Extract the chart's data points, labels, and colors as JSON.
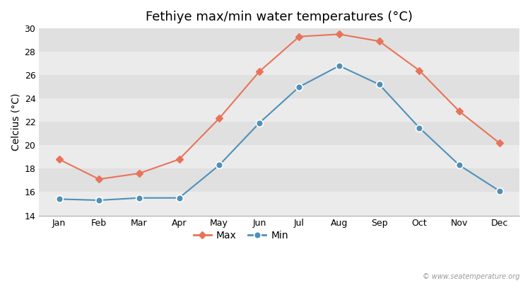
{
  "title": "Fethiye max/min water temperatures (°C)",
  "ylabel": "Celcius (°C)",
  "months": [
    "Jan",
    "Feb",
    "Mar",
    "Apr",
    "May",
    "Jun",
    "Jul",
    "Aug",
    "Sep",
    "Oct",
    "Nov",
    "Dec"
  ],
  "max_temps": [
    18.8,
    17.1,
    17.6,
    18.8,
    22.3,
    26.3,
    29.3,
    29.5,
    28.9,
    26.4,
    22.9,
    20.2
  ],
  "min_temps": [
    15.4,
    15.3,
    15.5,
    15.5,
    18.3,
    21.9,
    25.0,
    26.8,
    25.2,
    21.5,
    18.3,
    16.1
  ],
  "max_color": "#e8735a",
  "min_color": "#4f90b8",
  "ylim": [
    14,
    30
  ],
  "yticks": [
    14,
    16,
    18,
    20,
    22,
    24,
    26,
    28,
    30
  ],
  "band_colors": [
    "#ebebeb",
    "#e0e0e0"
  ],
  "title_fontsize": 13,
  "axis_label_fontsize": 10,
  "tick_fontsize": 9,
  "legend_labels": [
    "Max",
    "Min"
  ],
  "watermark": "© www.seatemperature.org"
}
